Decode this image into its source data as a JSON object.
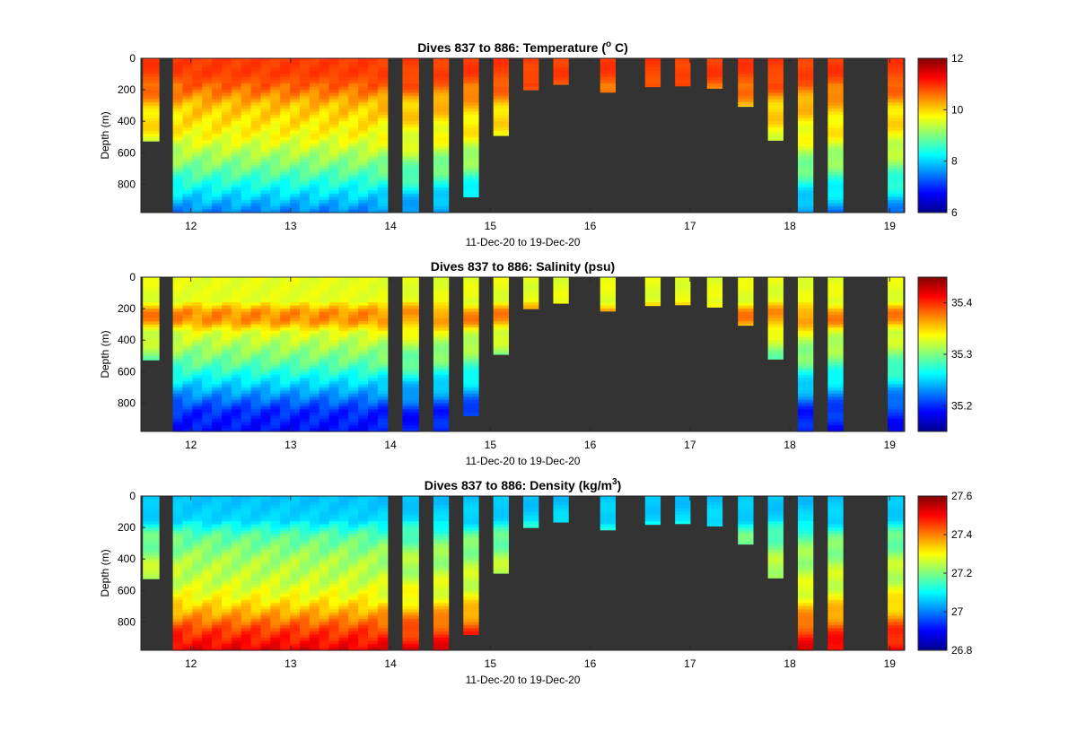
{
  "chart_data": [
    {
      "type": "heatmap",
      "title": "Dives 837 to 886: Temperature (",
      "title_sup": "o",
      "title_tail": " C)",
      "xlabel": "11-Dec-20 to 19-Dec-20",
      "ylabel": "Depth (m)",
      "xlim": [
        11.5,
        19.15
      ],
      "ylim": [
        0,
        980
      ],
      "xticks": [
        12,
        13,
        14,
        15,
        16,
        17,
        18,
        19
      ],
      "yticks": [
        0,
        200,
        400,
        600,
        800
      ],
      "colorbar": {
        "min": 6,
        "max": 12,
        "ticks": [
          6,
          8,
          10,
          12
        ],
        "colormap": "jet"
      },
      "background": "#333333",
      "profile": [
        [
          0,
          10.9
        ],
        [
          100,
          10.9
        ],
        [
          200,
          10.6
        ],
        [
          300,
          10.1
        ],
        [
          400,
          9.9
        ],
        [
          500,
          9.7
        ],
        [
          600,
          9.3
        ],
        [
          700,
          8.9
        ],
        [
          800,
          8.4
        ],
        [
          900,
          7.9
        ],
        [
          980,
          7.5
        ]
      ]
    },
    {
      "type": "heatmap",
      "title": "Dives 837 to 886: Salinity (psu)",
      "title_sup": "",
      "title_tail": "",
      "xlabel": "11-Dec-20 to 19-Dec-20",
      "ylabel": "Depth (m)",
      "xlim": [
        11.5,
        19.15
      ],
      "ylim": [
        0,
        980
      ],
      "xticks": [
        12,
        13,
        14,
        15,
        16,
        17,
        18,
        19
      ],
      "yticks": [
        0,
        200,
        400,
        600,
        800
      ],
      "colorbar": {
        "min": 35.15,
        "max": 35.45,
        "ticks": [
          35.2,
          35.3,
          35.4
        ],
        "colormap": "jet"
      },
      "background": "#333333",
      "profile": [
        [
          0,
          35.33
        ],
        [
          150,
          35.33
        ],
        [
          220,
          35.37
        ],
        [
          280,
          35.37
        ],
        [
          350,
          35.33
        ],
        [
          450,
          35.31
        ],
        [
          550,
          35.29
        ],
        [
          650,
          35.26
        ],
        [
          750,
          35.23
        ],
        [
          850,
          35.2
        ],
        [
          980,
          35.19
        ]
      ]
    },
    {
      "type": "heatmap",
      "title": "Dives 837 to 886: Density (kg/m",
      "title_sup": "3",
      "title_tail": ")",
      "xlabel": "11-Dec-20 to 19-Dec-20",
      "ylabel": "Depth (m)",
      "xlim": [
        11.5,
        19.15
      ],
      "ylim": [
        0,
        980
      ],
      "xticks": [
        12,
        13,
        14,
        15,
        16,
        17,
        18,
        19
      ],
      "yticks": [
        0,
        200,
        400,
        600,
        800
      ],
      "colorbar": {
        "min": 26.8,
        "max": 27.6,
        "ticks": [
          26.8,
          27,
          27.2,
          27.4,
          27.6
        ],
        "colormap": "jet"
      },
      "background": "#333333",
      "profile": [
        [
          0,
          27.05
        ],
        [
          150,
          27.07
        ],
        [
          250,
          27.17
        ],
        [
          400,
          27.23
        ],
        [
          550,
          27.26
        ],
        [
          650,
          27.3
        ],
        [
          750,
          27.37
        ],
        [
          850,
          27.45
        ],
        [
          950,
          27.5
        ],
        [
          980,
          27.52
        ]
      ]
    }
  ],
  "dives": {
    "continuous_block": {
      "start": 11.82,
      "end": 13.97,
      "max_depth": 980
    },
    "profiles": [
      {
        "start": 11.52,
        "end": 11.68,
        "max_depth": 525
      },
      {
        "start": 14.12,
        "end": 14.28,
        "max_depth": 980
      },
      {
        "start": 14.43,
        "end": 14.58,
        "max_depth": 980
      },
      {
        "start": 14.73,
        "end": 14.88,
        "max_depth": 880
      },
      {
        "start": 15.03,
        "end": 15.18,
        "max_depth": 490
      },
      {
        "start": 15.33,
        "end": 15.48,
        "max_depth": 200
      },
      {
        "start": 15.63,
        "end": 15.78,
        "max_depth": 165
      },
      {
        "start": 16.1,
        "end": 16.25,
        "max_depth": 215
      },
      {
        "start": 16.55,
        "end": 16.7,
        "max_depth": 180
      },
      {
        "start": 16.85,
        "end": 17.0,
        "max_depth": 175
      },
      {
        "start": 17.17,
        "end": 17.32,
        "max_depth": 190
      },
      {
        "start": 17.48,
        "end": 17.63,
        "max_depth": 305
      },
      {
        "start": 17.78,
        "end": 17.93,
        "max_depth": 520
      },
      {
        "start": 18.08,
        "end": 18.23,
        "max_depth": 980
      },
      {
        "start": 18.38,
        "end": 18.53,
        "max_depth": 980
      },
      {
        "start": 18.98,
        "end": 19.13,
        "max_depth": 980
      }
    ]
  }
}
